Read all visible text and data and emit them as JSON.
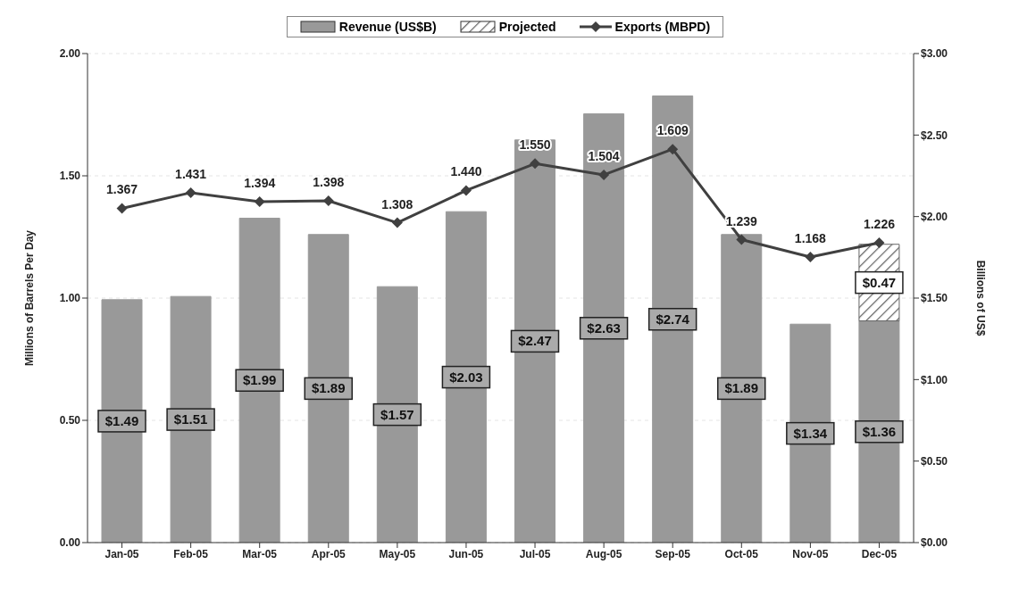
{
  "chart_data": {
    "type": "bar",
    "categories": [
      "Jan-05",
      "Feb-05",
      "Mar-05",
      "Apr-05",
      "May-05",
      "Jun-05",
      "Jul-05",
      "Aug-05",
      "Sep-05",
      "Oct-05",
      "Nov-05",
      "Dec-05"
    ],
    "series": [
      {
        "name": "Revenue (US$B)",
        "axis": "y2",
        "color": "#999999",
        "values": [
          1.49,
          1.51,
          1.99,
          1.89,
          1.57,
          2.03,
          2.47,
          2.63,
          2.74,
          1.89,
          1.34,
          1.36
        ],
        "value_labels": [
          "$1.49",
          "$1.51",
          "$1.99",
          "$1.89",
          "$1.57",
          "$2.03",
          "$2.47",
          "$2.63",
          "$2.74",
          "$1.89",
          "$1.34",
          "$1.36"
        ]
      },
      {
        "name": "Projected",
        "axis": "y2",
        "color": "#666666",
        "values": [
          null,
          null,
          null,
          null,
          null,
          null,
          null,
          null,
          null,
          null,
          null,
          0.47
        ],
        "value_labels": [
          null,
          null,
          null,
          null,
          null,
          null,
          null,
          null,
          null,
          null,
          null,
          "$0.47"
        ]
      },
      {
        "name": "Exports (MBPD)",
        "type": "line",
        "axis": "y",
        "color": "#404040",
        "values": [
          1.367,
          1.431,
          1.394,
          1.398,
          1.308,
          1.44,
          1.55,
          1.504,
          1.609,
          1.239,
          1.168,
          1.226
        ],
        "value_labels": [
          "1.367",
          "1.431",
          "1.394",
          "1.398",
          "1.308",
          "1.440",
          "1.550",
          "1.504",
          "1.609",
          "1.239",
          "1.168",
          "1.226"
        ]
      }
    ],
    "stacked": true,
    "ylabel": "Millions of Barrels Per Day",
    "y2label": "Billions of US$",
    "ylim": [
      0,
      2
    ],
    "yticks": [
      {
        "value": 0,
        "label": "0.00"
      },
      {
        "value": 0.5,
        "label": "0.50"
      },
      {
        "value": 1,
        "label": "1.00"
      },
      {
        "value": 1.5,
        "label": "1.50"
      },
      {
        "value": 2,
        "label": "2.00"
      }
    ],
    "y2lim": [
      0,
      3
    ],
    "y2ticks": [
      {
        "value": 0,
        "label": "$0.00"
      },
      {
        "value": 0.5,
        "label": "$0.50"
      },
      {
        "value": 1,
        "label": "$1.00"
      },
      {
        "value": 1.5,
        "label": "$1.50"
      },
      {
        "value": 2,
        "label": "$2.00"
      },
      {
        "value": 2.5,
        "label": "$2.50"
      },
      {
        "value": 3,
        "label": "$3.00"
      }
    ],
    "grid": "y",
    "legend": "top",
    "marker": "diamond",
    "line_style": "solid"
  }
}
